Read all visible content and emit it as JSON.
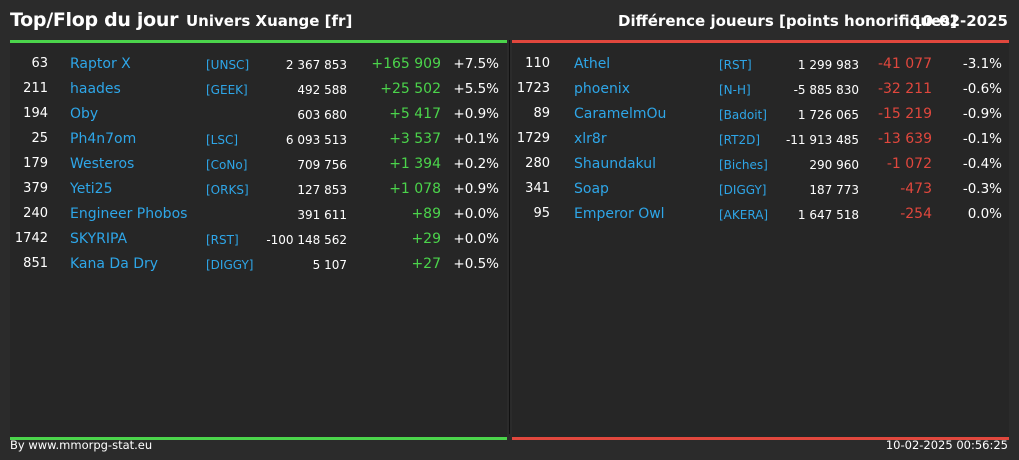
{
  "header": {
    "title": "Top/Flop du jour",
    "universe": "Univers Xuange [fr]",
    "metric": "Différence joueurs [points honorifiques]",
    "date": "10-02-2025"
  },
  "colors": {
    "top_accent": "#4bd44b",
    "flop_accent": "#e0473d",
    "name_color": "#2ea6e8",
    "background": "#2b2b2b"
  },
  "top": [
    {
      "rank": "63",
      "name": "Raptor X",
      "tag": "[UNSC]",
      "points": "2 367 853",
      "delta": "+165 909",
      "pct": "+7.5%"
    },
    {
      "rank": "211",
      "name": "haades",
      "tag": "[GEEK]",
      "points": "492 588",
      "delta": "+25 502",
      "pct": "+5.5%"
    },
    {
      "rank": "194",
      "name": "Oby",
      "tag": "",
      "points": "603 680",
      "delta": "+5 417",
      "pct": "+0.9%"
    },
    {
      "rank": "25",
      "name": "Ph4n7om",
      "tag": "[LSC]",
      "points": "6 093 513",
      "delta": "+3 537",
      "pct": "+0.1%"
    },
    {
      "rank": "179",
      "name": "Westeros",
      "tag": "[CoNo]",
      "points": "709 756",
      "delta": "+1 394",
      "pct": "+0.2%"
    },
    {
      "rank": "379",
      "name": "Yeti25",
      "tag": "[ORKS]",
      "points": "127 853",
      "delta": "+1 078",
      "pct": "+0.9%"
    },
    {
      "rank": "240",
      "name": "Engineer Phobos",
      "tag": "",
      "points": "391 611",
      "delta": "+89",
      "pct": "+0.0%"
    },
    {
      "rank": "1742",
      "name": "SKYRIPA",
      "tag": "[RST]",
      "points": "-100 148 562",
      "delta": "+29",
      "pct": "+0.0%"
    },
    {
      "rank": "851",
      "name": "Kana Da Dry",
      "tag": "[DIGGY]",
      "points": "5 107",
      "delta": "+27",
      "pct": "+0.5%"
    }
  ],
  "flop": [
    {
      "rank": "110",
      "name": "Athel",
      "tag": "[RST]",
      "points": "1 299 983",
      "delta": "-41 077",
      "pct": "-3.1%"
    },
    {
      "rank": "1723",
      "name": "phoenix",
      "tag": "[N-H]",
      "points": "-5 885 830",
      "delta": "-32 211",
      "pct": "-0.6%"
    },
    {
      "rank": "89",
      "name": "CaramelmOu",
      "tag": "[Badoit]",
      "points": "1 726 065",
      "delta": "-15 219",
      "pct": "-0.9%"
    },
    {
      "rank": "1729",
      "name": "xlr8r",
      "tag": "[RT2D]",
      "points": "-11 913 485",
      "delta": "-13 639",
      "pct": "-0.1%"
    },
    {
      "rank": "280",
      "name": "Shaundakul",
      "tag": "[Biches]",
      "points": "290 960",
      "delta": "-1 072",
      "pct": "-0.4%"
    },
    {
      "rank": "341",
      "name": "Soap",
      "tag": "[DIGGY]",
      "points": "187 773",
      "delta": "-473",
      "pct": "-0.3%"
    },
    {
      "rank": "95",
      "name": "Emperor Owl",
      "tag": "[AKERA]",
      "points": "1 647 518",
      "delta": "-254",
      "pct": "0.0%"
    }
  ],
  "footer": {
    "credit": "By www.mmorpg-stat.eu",
    "timestamp": "10-02-2025 00:56:25"
  }
}
